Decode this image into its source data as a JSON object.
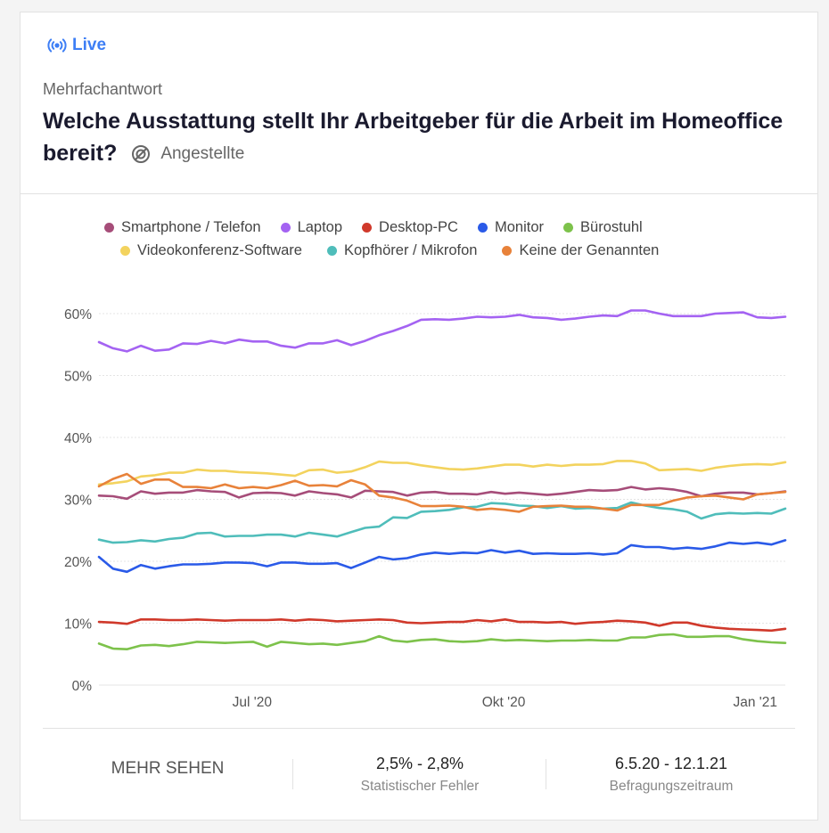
{
  "header": {
    "live_label": "Live",
    "question_type": "Mehrfachantwort",
    "title": "Welche Ausstattung stellt Ihr Arbeitgeber für die Arbeit im Homeof­fice bereit?",
    "segment": "Angestellte"
  },
  "footer": {
    "more_label": "MEHR SEHEN",
    "error_value": "2,5% - 2,8%",
    "error_label": "Statistischer Fehler",
    "period_value": "6.5.20 - 12.1.21",
    "period_label": "Befragungszeitraum"
  },
  "colors": {
    "accent": "#3d7ef5"
  },
  "chart_data": {
    "type": "line",
    "x_start": "2020-05-06",
    "x_end": "2021-01-12",
    "x_ticks": [
      {
        "label": "Jul '20",
        "date": "2020-07-01"
      },
      {
        "label": "Okt '20",
        "date": "2020-10-01"
      },
      {
        "label": "Jan '21",
        "date": "2021-01-01"
      }
    ],
    "y_ticks": [
      "0%",
      "10%",
      "20%",
      "30%",
      "40%",
      "50%",
      "60%"
    ],
    "ylim": [
      0,
      65
    ],
    "grid": "horizontal",
    "legend_position": "top",
    "series": [
      {
        "name": "Smartphone / Telefon",
        "color": "#a64d79",
        "values": [
          30.6,
          30.5,
          30.1,
          31.3,
          30.9,
          31.1,
          31.1,
          31.5,
          31.3,
          31.2,
          30.3,
          31.0,
          31.1,
          31.0,
          30.6,
          31.3,
          31.0,
          30.8,
          30.3,
          31.4,
          31.3,
          31.2,
          30.6,
          31.1,
          31.2,
          30.9,
          30.9,
          30.8,
          31.2,
          30.9,
          31.1,
          30.9,
          30.7,
          30.9,
          31.2,
          31.5,
          31.4,
          31.5,
          32.0,
          31.6,
          31.8,
          31.6,
          31.2,
          30.5,
          30.9,
          31.1,
          31.1,
          30.8,
          31.0,
          31.3
        ]
      },
      {
        "name": "Laptop",
        "color": "#a463f2",
        "values": [
          55.4,
          54.4,
          53.9,
          54.8,
          54.0,
          54.2,
          55.2,
          55.1,
          55.6,
          55.2,
          55.8,
          55.5,
          55.5,
          54.8,
          54.5,
          55.2,
          55.2,
          55.7,
          54.9,
          55.6,
          56.5,
          57.2,
          58.0,
          59.0,
          59.1,
          59.0,
          59.2,
          59.5,
          59.4,
          59.5,
          59.8,
          59.4,
          59.3,
          59.0,
          59.2,
          59.5,
          59.7,
          59.6,
          60.5,
          60.5,
          60.0,
          59.6,
          59.6,
          59.6,
          60.0,
          60.1,
          60.2,
          59.4,
          59.3,
          59.5
        ]
      },
      {
        "name": "Desktop-PC",
        "color": "#d0392b",
        "values": [
          10.2,
          10.1,
          9.9,
          10.6,
          10.6,
          10.5,
          10.5,
          10.6,
          10.5,
          10.4,
          10.5,
          10.5,
          10.5,
          10.6,
          10.4,
          10.6,
          10.5,
          10.3,
          10.4,
          10.5,
          10.6,
          10.5,
          10.1,
          10.0,
          10.1,
          10.2,
          10.2,
          10.5,
          10.3,
          10.6,
          10.2,
          10.2,
          10.1,
          10.2,
          9.9,
          10.1,
          10.2,
          10.4,
          10.3,
          10.1,
          9.6,
          10.1,
          10.1,
          9.6,
          9.3,
          9.1,
          9.0,
          8.9,
          8.8,
          9.1
        ]
      },
      {
        "name": "Monitor",
        "color": "#2a5ae8",
        "values": [
          20.7,
          18.8,
          18.3,
          19.4,
          18.8,
          19.2,
          19.5,
          19.5,
          19.6,
          19.8,
          19.8,
          19.7,
          19.2,
          19.8,
          19.8,
          19.6,
          19.6,
          19.7,
          18.9,
          19.8,
          20.7,
          20.3,
          20.5,
          21.1,
          21.4,
          21.2,
          21.4,
          21.3,
          21.8,
          21.4,
          21.7,
          21.2,
          21.3,
          21.2,
          21.2,
          21.3,
          21.1,
          21.3,
          22.6,
          22.3,
          22.3,
          22.0,
          22.2,
          22.0,
          22.4,
          23.0,
          22.8,
          23.0,
          22.7,
          23.4
        ]
      },
      {
        "name": "Bürostuhl",
        "color": "#7dc24b",
        "values": [
          6.7,
          5.9,
          5.8,
          6.4,
          6.5,
          6.3,
          6.6,
          7.0,
          6.9,
          6.8,
          6.9,
          7.0,
          6.2,
          7.0,
          6.8,
          6.6,
          6.7,
          6.5,
          6.8,
          7.1,
          7.9,
          7.2,
          7.0,
          7.3,
          7.4,
          7.1,
          7.0,
          7.1,
          7.4,
          7.2,
          7.3,
          7.2,
          7.1,
          7.2,
          7.2,
          7.3,
          7.2,
          7.2,
          7.7,
          7.7,
          8.1,
          8.2,
          7.8,
          7.8,
          7.9,
          7.9,
          7.4,
          7.1,
          6.9,
          6.8
        ]
      },
      {
        "name": "Videokonferenz-Software",
        "color": "#f3d35e",
        "values": [
          32.4,
          32.6,
          32.9,
          33.7,
          33.9,
          34.3,
          34.3,
          34.8,
          34.6,
          34.6,
          34.4,
          34.3,
          34.2,
          34.0,
          33.8,
          34.7,
          34.8,
          34.3,
          34.5,
          35.2,
          36.1,
          35.9,
          35.9,
          35.5,
          35.2,
          34.9,
          34.8,
          35.0,
          35.3,
          35.6,
          35.6,
          35.3,
          35.6,
          35.4,
          35.6,
          35.6,
          35.7,
          36.2,
          36.2,
          35.8,
          34.7,
          34.8,
          34.9,
          34.6,
          35.1,
          35.4,
          35.6,
          35.7,
          35.6,
          36.0
        ]
      },
      {
        "name": "Kopfhörer / Mikrofon",
        "color": "#4fbdba",
        "values": [
          23.5,
          23.0,
          23.1,
          23.4,
          23.2,
          23.6,
          23.8,
          24.5,
          24.6,
          24.0,
          24.1,
          24.1,
          24.3,
          24.3,
          24.0,
          24.6,
          24.3,
          24.0,
          24.7,
          25.4,
          25.6,
          27.1,
          27.0,
          28.0,
          28.1,
          28.3,
          28.7,
          28.8,
          29.4,
          29.3,
          29.0,
          28.9,
          28.6,
          28.9,
          28.5,
          28.6,
          28.5,
          28.6,
          29.5,
          29.0,
          28.6,
          28.4,
          28.0,
          26.9,
          27.6,
          27.8,
          27.7,
          27.8,
          27.7,
          28.5
        ]
      },
      {
        "name": "Keine der Genannten",
        "color": "#e8823a",
        "values": [
          32.1,
          33.3,
          34.1,
          32.5,
          33.2,
          33.2,
          32.0,
          32.0,
          31.8,
          32.4,
          31.8,
          32.0,
          31.8,
          32.3,
          33.0,
          32.2,
          32.3,
          32.1,
          33.1,
          32.4,
          30.6,
          30.3,
          29.8,
          28.9,
          28.9,
          29.0,
          28.8,
          28.3,
          28.5,
          28.3,
          28.0,
          28.8,
          28.9,
          29.0,
          28.8,
          28.8,
          28.5,
          28.2,
          29.1,
          29.1,
          29.1,
          29.8,
          30.3,
          30.5,
          30.6,
          30.3,
          30.0,
          30.8,
          31.0,
          31.2
        ]
      }
    ]
  }
}
